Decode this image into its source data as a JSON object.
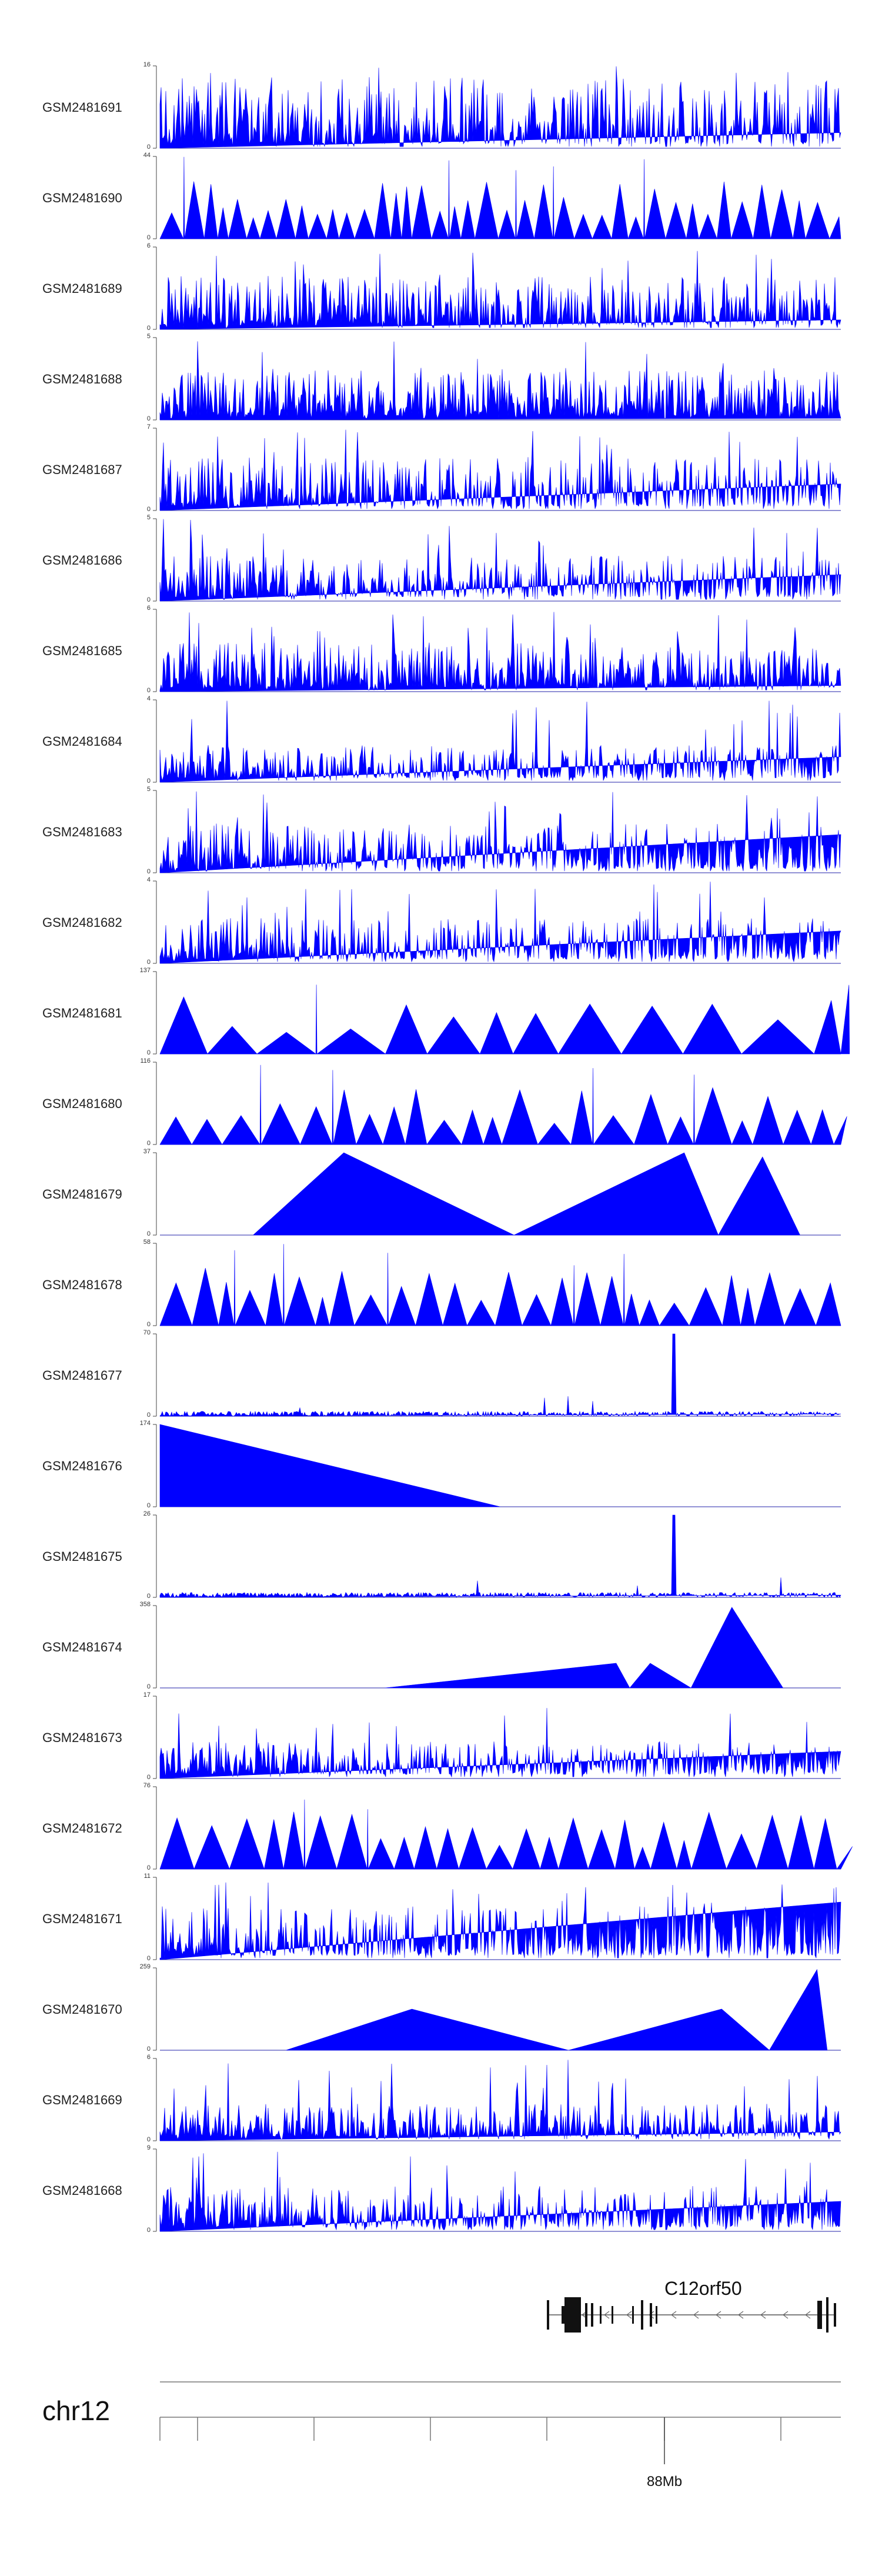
{
  "chart_data": {
    "type": "area",
    "title": "",
    "xlabel": "chr12",
    "x_tick_label": "88Mb",
    "color": "#0000ff",
    "tracks": [
      {
        "name": "GSM2481691",
        "ymax": "16",
        "ymin": "0",
        "style": "dense",
        "seed": 91,
        "peak": 0.8
      },
      {
        "name": "GSM2481690",
        "ymax": "44",
        "ymin": "0",
        "style": "tri",
        "seed": 90,
        "n": 42
      },
      {
        "name": "GSM2481689",
        "ymax": "6",
        "ymin": "0",
        "style": "dense",
        "seed": 89,
        "peak": 0.6
      },
      {
        "name": "GSM2481688",
        "ymax": "5",
        "ymin": "0",
        "style": "dense",
        "seed": 88,
        "peak": 0.55
      },
      {
        "name": "GSM2481687",
        "ymax": "7",
        "ymin": "0",
        "style": "dense",
        "seed": 87,
        "peak": 0.6
      },
      {
        "name": "GSM2481686",
        "ymax": "5",
        "ymin": "0",
        "style": "dense",
        "seed": 86,
        "peak": 0.5
      },
      {
        "name": "GSM2481685",
        "ymax": "6",
        "ymin": "0",
        "style": "dense",
        "seed": 85,
        "peak": 0.55
      },
      {
        "name": "GSM2481684",
        "ymax": "4",
        "ymin": "0",
        "style": "dense",
        "seed": 84,
        "peak": 0.4
      },
      {
        "name": "GSM2481683",
        "ymax": "5",
        "ymin": "0",
        "style": "dense",
        "seed": 83,
        "peak": 0.55
      },
      {
        "name": "GSM2481682",
        "ymax": "4",
        "ymin": "0",
        "style": "dense",
        "seed": 82,
        "peak": 0.5
      },
      {
        "name": "GSM2481681",
        "ymax": "137",
        "ymin": "0",
        "style": "tri",
        "seed": 81,
        "n": 14
      },
      {
        "name": "GSM2481680",
        "ymax": "116",
        "ymin": "0",
        "style": "tri",
        "seed": 80,
        "n": 24
      },
      {
        "name": "GSM2481679",
        "ymax": "37",
        "ymin": "0",
        "style": "big",
        "seed": 79,
        "peaks": [
          [
            0.137,
            0
          ],
          [
            0.27,
            1.0
          ],
          [
            0.52,
            0
          ],
          [
            0.77,
            1.0
          ],
          [
            0.82,
            0
          ],
          [
            0.885,
            0.95
          ],
          [
            0.94,
            0
          ]
        ]
      },
      {
        "name": "GSM2481678",
        "ymax": "58",
        "ymin": "0",
        "style": "tri",
        "seed": 78,
        "n": 30
      },
      {
        "name": "GSM2481677",
        "ymax": "70",
        "ymin": "0",
        "style": "sparse",
        "seed": 77,
        "spike": 0.755
      },
      {
        "name": "GSM2481676",
        "ymax": "174",
        "ymin": "0",
        "style": "big",
        "seed": 76,
        "peaks": [
          [
            0.0,
            0
          ],
          [
            0.0,
            1.0
          ],
          [
            0.5,
            0
          ]
        ]
      },
      {
        "name": "GSM2481675",
        "ymax": "26",
        "ymin": "0",
        "style": "sparse",
        "seed": 75,
        "spike": 0.755
      },
      {
        "name": "GSM2481674",
        "ymax": "358",
        "ymin": "0",
        "style": "big",
        "seed": 74,
        "peaks": [
          [
            0.33,
            0
          ],
          [
            0.67,
            0.3
          ],
          [
            0.69,
            0
          ],
          [
            0.72,
            0.3
          ],
          [
            0.78,
            0
          ],
          [
            0.84,
            0.98
          ],
          [
            0.915,
            0
          ]
        ]
      },
      {
        "name": "GSM2481673",
        "ymax": "17",
        "ymin": "0",
        "style": "dense",
        "seed": 73,
        "peak": 0.4
      },
      {
        "name": "GSM2481672",
        "ymax": "76",
        "ymin": "0",
        "style": "tri",
        "seed": 72,
        "n": 28
      },
      {
        "name": "GSM2481671",
        "ymax": "11",
        "ymin": "0",
        "style": "dense",
        "seed": 71,
        "peak": 0.6
      },
      {
        "name": "GSM2481670",
        "ymax": "259",
        "ymin": "0",
        "style": "big",
        "seed": 70,
        "peaks": [
          [
            0.185,
            0
          ],
          [
            0.37,
            0.5
          ],
          [
            0.6,
            0
          ],
          [
            0.825,
            0.5
          ],
          [
            0.895,
            0
          ],
          [
            0.965,
            0.98
          ],
          [
            0.98,
            0
          ]
        ]
      },
      {
        "name": "GSM2481669",
        "ymax": "6",
        "ymin": "0",
        "style": "dense",
        "seed": 69,
        "peak": 0.4
      },
      {
        "name": "GSM2481668",
        "ymax": "9",
        "ymin": "0",
        "style": "dense",
        "seed": 68,
        "peak": 0.5
      }
    ]
  },
  "gene": {
    "name": "C12orf50",
    "strand": "-"
  },
  "chromosome": {
    "name": "chr12",
    "tick_label": "88Mb"
  }
}
